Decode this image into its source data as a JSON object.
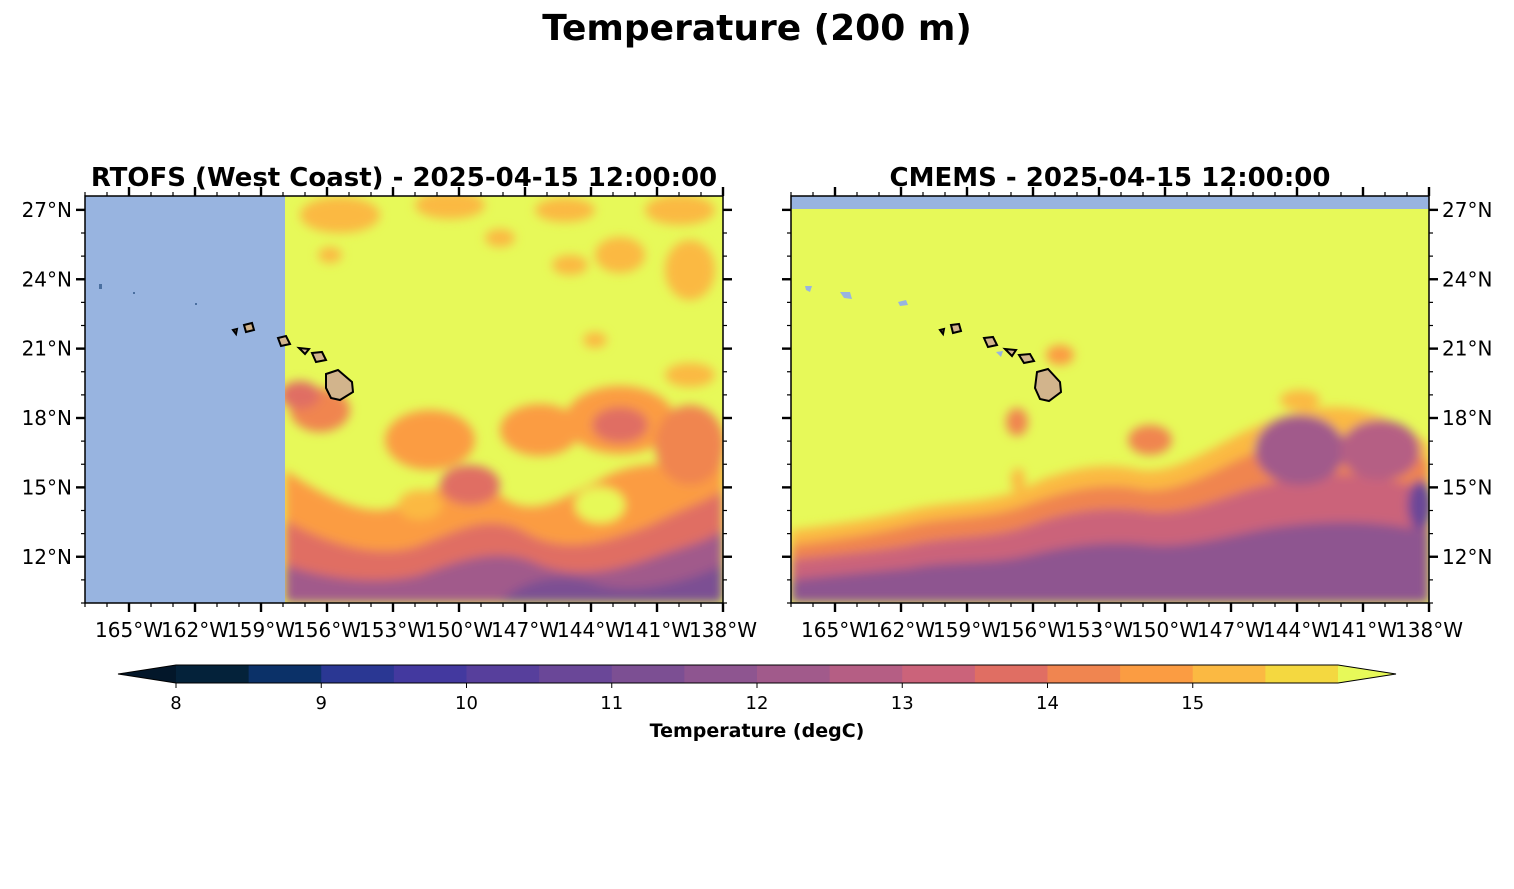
{
  "figure": {
    "title": "Temperature (200 m)"
  },
  "panels": [
    {
      "title": "RTOFS (West Coast) - 2025-04-15 12:00:00",
      "lat_labels": [
        "27°N",
        "24°N",
        "21°N",
        "18°N",
        "15°N",
        "12°N"
      ],
      "lon_labels": [
        "165°W",
        "162°W",
        "159°W",
        "156°W",
        "153°W",
        "150°W",
        "147°W",
        "144°W",
        "141°W",
        "138°W"
      ],
      "lat_label_side": "left",
      "extent": {
        "lon_min": -167,
        "lon_max": -138,
        "lat_min": 10,
        "lat_max": 27.6
      },
      "no_data_region": "west of 157.8°W"
    },
    {
      "title": "CMEMS - 2025-04-15 12:00:00",
      "lat_labels": [
        "27°N",
        "24°N",
        "21°N",
        "18°N",
        "15°N",
        "12°N"
      ],
      "lon_labels": [
        "165°W",
        "162°W",
        "159°W",
        "156°W",
        "153°W",
        "150°W",
        "147°W",
        "144°W",
        "141°W",
        "138°W"
      ],
      "lat_label_side": "right",
      "extent": {
        "lon_min": -167,
        "lon_max": -138,
        "lat_min": 10,
        "lat_max": 27.6
      },
      "no_data_region": "north of 27°N"
    }
  ],
  "colorbar": {
    "label": "Temperature (degC)",
    "ticks": [
      "8",
      "9",
      "10",
      "11",
      "12",
      "13",
      "14",
      "15"
    ],
    "levels": [
      8.0,
      8.5,
      9.0,
      9.5,
      10.0,
      10.5,
      11.0,
      11.5,
      12.0,
      12.5,
      13.0,
      13.5,
      14.0,
      14.5,
      15.0,
      15.5
    ],
    "colors": [
      "#04223a",
      "#0b3168",
      "#2a3793",
      "#43399f",
      "#573f9c",
      "#6a4798",
      "#7c4f93",
      "#8e5590",
      "#a15a8b",
      "#b55e84",
      "#cb637a",
      "#e06e63",
      "#f08550",
      "#fb9c42",
      "#fbb942",
      "#f4d840"
    ],
    "under_color": "#03172a",
    "over_color": "#e7f959",
    "extend": "both"
  },
  "colors": {
    "no_data": "#98b4e0",
    "land": "#d2b48c",
    "warm": "#e7f959"
  }
}
